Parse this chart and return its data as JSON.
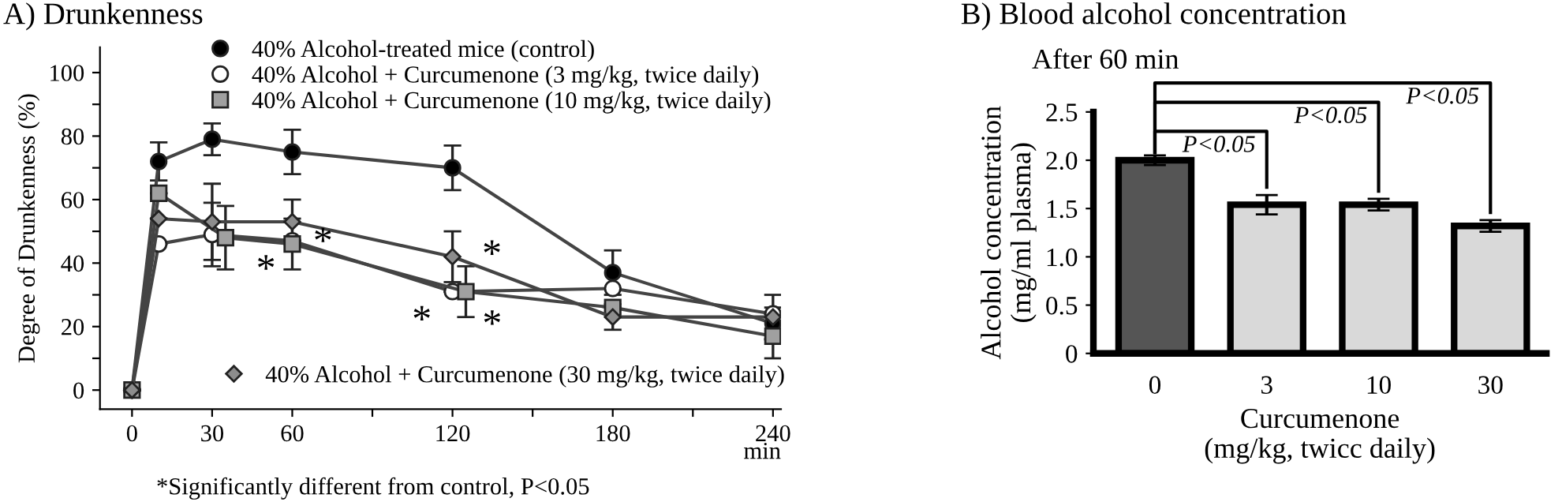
{
  "chart_data": [
    {
      "type": "line",
      "title": "A) Drunkenness",
      "ylabel": "Degree of Drunkenness (%)",
      "xlabel": "min",
      "xlim": [
        -12,
        243
      ],
      "ylim": [
        -6,
        108
      ],
      "xticks": [
        0,
        30,
        60,
        {
          "value": 90,
          "label": null
        },
        120,
        {
          "value": 150,
          "label": null
        },
        180,
        {
          "value": 210,
          "label": null
        },
        240
      ],
      "yticks": [
        0,
        {
          "value": 10,
          "label": null
        },
        20,
        {
          "value": 30,
          "label": null
        },
        40,
        {
          "value": 50,
          "label": null
        },
        60,
        {
          "value": 70,
          "label": null
        },
        80,
        {
          "value": 90,
          "label": null
        },
        100
      ],
      "legend": "top",
      "grid": false,
      "series": [
        {
          "name": "40% Alcohol-treated mice (control)",
          "color": "#000000",
          "marker": "circle",
          "x": [
            0,
            10,
            30,
            60,
            120,
            180,
            240
          ],
          "values": [
            0,
            72,
            79,
            75,
            70,
            37,
            21
          ],
          "errors": [
            null,
            6,
            5,
            7,
            7,
            7,
            5
          ]
        },
        {
          "name": "40% Alcohol + Curcumenone (3 mg/kg, twice daily)",
          "color": "#ffffff",
          "marker": "circle",
          "x": [
            0,
            10,
            30,
            60,
            120,
            180,
            240
          ],
          "values": [
            0,
            46,
            49,
            47,
            31,
            32,
            24
          ],
          "errors": [
            null,
            null,
            10,
            null,
            null,
            null,
            null
          ]
        },
        {
          "name": "40% Alcohol + Curcumenone (10 mg/kg, twice daily)",
          "color": "#a0a0a0",
          "marker": "square",
          "x": [
            0,
            10,
            35,
            60,
            125,
            180,
            240
          ],
          "values": [
            0,
            62,
            48,
            46,
            31,
            26,
            17
          ],
          "errors": [
            null,
            null,
            10,
            8,
            8,
            null,
            7
          ]
        },
        {
          "name": "40% Alcohol + Curcumenone (30 mg/kg, twice daily)",
          "color": "#8c8c8c",
          "marker": "diamond",
          "x": [
            0,
            10,
            30,
            60,
            120,
            180,
            240
          ],
          "values": [
            0,
            54,
            53,
            53,
            42,
            23,
            23
          ],
          "errors": [
            null,
            null,
            12,
            7,
            8,
            4,
            7
          ]
        }
      ],
      "annotations": [
        {
          "text": "*",
          "x": 60,
          "y": 47
        },
        {
          "text": "*",
          "x": 60,
          "y": 46
        },
        {
          "text": "*",
          "x": 120,
          "y": 31
        },
        {
          "text": "*",
          "x": 120,
          "y": 42
        },
        {
          "text": "*",
          "x": 125,
          "y": 31
        },
        "*Significantly different from control, P<0.05"
      ]
    },
    {
      "type": "bar",
      "title": "B) Blood alcohol concentration",
      "subtitle": "After 60 min",
      "ylabel": "Alcohol concentration\n(mg/ml plasma)",
      "xlabel": "Curcumenone\n(mg/kg, twicc daily)",
      "categories": [
        "0",
        "3",
        "10",
        "30"
      ],
      "values": [
        2.0,
        1.54,
        1.54,
        1.32
      ],
      "errors": [
        0.05,
        0.1,
        0.06,
        0.06
      ],
      "colors": [
        "#555555",
        "#d9d9d9",
        "#d9d9d9",
        "#d9d9d9"
      ],
      "ylim": [
        0,
        2.5
      ],
      "yticks": [
        0,
        {
          "value": 0.5,
          "label": "0.5"
        },
        {
          "value": 1.0,
          "label": "1.0"
        },
        {
          "value": 1.5,
          "label": "1.5"
        },
        {
          "value": 2.0,
          "label": "2.0"
        },
        {
          "value": 2.5,
          "label": "2.5"
        }
      ],
      "grid": false,
      "annotations": [
        "P<0.05",
        "P<0.05",
        "P<0.05"
      ]
    }
  ]
}
